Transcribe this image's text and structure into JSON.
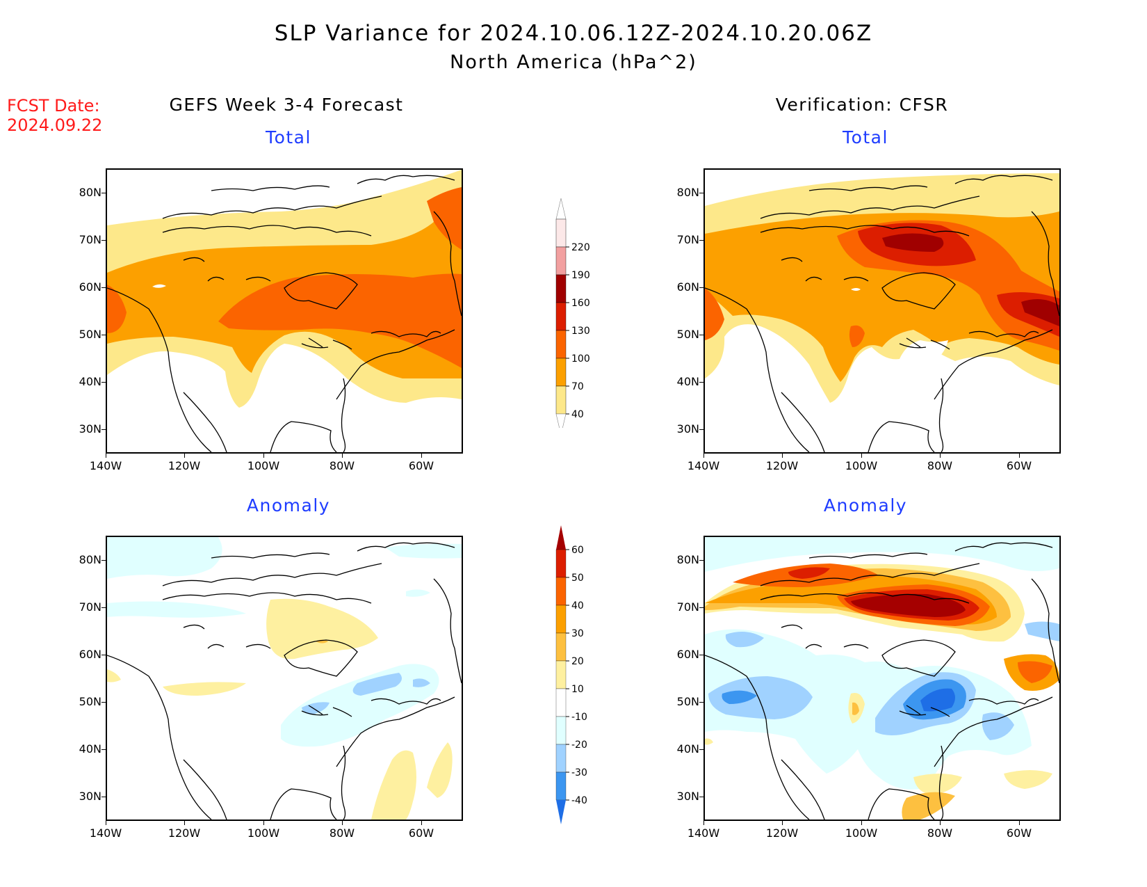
{
  "header": {
    "title": "SLP Variance for 2024.10.06.12Z-2024.10.20.06Z",
    "subtitle": "North America (hPa^2)",
    "fcst_label": "FCST Date:",
    "fcst_date": "2024.09.22"
  },
  "columns": {
    "left": "GEFS Week 3-4 Forecast",
    "right": "Verification: CFSR"
  },
  "panels": {
    "tl": "Total",
    "tr": "Total",
    "bl": "Anomaly",
    "br": "Anomaly"
  },
  "axes": {
    "lat_ticks": [
      "80N",
      "70N",
      "60N",
      "50N",
      "40N",
      "30N"
    ],
    "lon_ticks": [
      "140W",
      "120W",
      "100W",
      "80W",
      "60W"
    ]
  },
  "total_colorbar": {
    "labels": [
      "220",
      "190",
      "160",
      "130",
      "100",
      "70",
      "40"
    ],
    "colors": [
      "#ffffff",
      "#fce8e8",
      "#f2a0a0",
      "#a00000",
      "#dc1e00",
      "#fb6400",
      "#fca000",
      "#fde88a"
    ]
  },
  "anomaly_colorbar": {
    "labels": [
      "60",
      "50",
      "40",
      "30",
      "20",
      "10",
      "-10",
      "-20",
      "-30",
      "-40"
    ],
    "colors": [
      "#a50000",
      "#dc1e00",
      "#fb6400",
      "#fca000",
      "#fdc040",
      "#fef0a0",
      "#ffffff",
      "#e0ffff",
      "#a0d2ff",
      "#3c96f0",
      "#1e6ee6"
    ]
  },
  "colors": {
    "fcst_date": "#ff1a1a",
    "panel_title": "#1e3cff"
  }
}
